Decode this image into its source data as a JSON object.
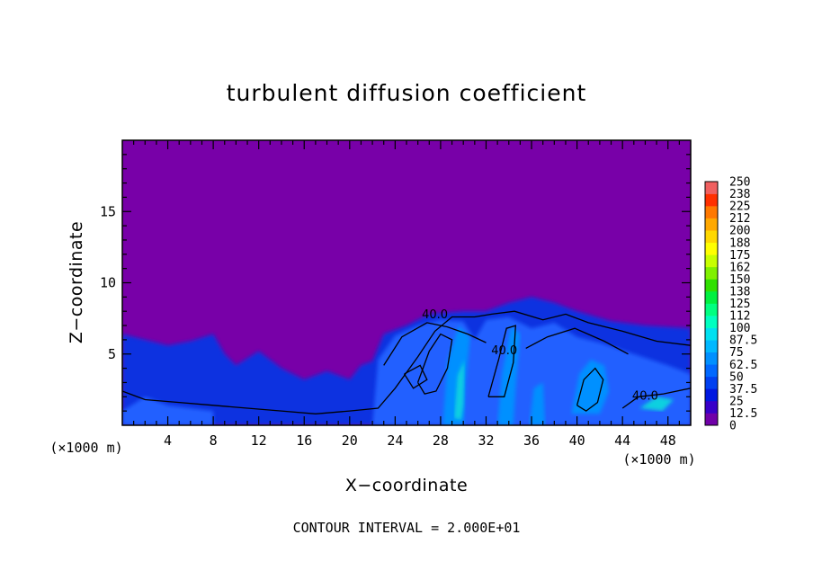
{
  "chart_data": {
    "type": "heatmap",
    "title": "turbulent diffusion coefficient",
    "xlabel": "X−coordinate",
    "ylabel": "Z−coordinate",
    "x_unit_left": "(×1000 m)",
    "x_unit_right": "(×1000 m)",
    "xlim": [
      0,
      50
    ],
    "ylim": [
      0,
      20
    ],
    "x_ticks": [
      4,
      8,
      12,
      16,
      20,
      24,
      28,
      32,
      36,
      40,
      44,
      48
    ],
    "y_ticks": [
      5,
      10,
      15
    ],
    "note": "CONTOUR INTERVAL = 2.000E+01",
    "contour_labels": [
      {
        "text": "40.0",
        "x": 27.5,
        "z": 7.5
      },
      {
        "text": "40.0",
        "x": 33.6,
        "z": 5.0
      },
      {
        "text": "40.0",
        "x": 46.0,
        "z": 1.8
      }
    ],
    "colorbar": {
      "levels": [
        "0",
        "12.5",
        "25",
        "37.5",
        "50",
        "62.5",
        "75",
        "87.5",
        "100",
        "112",
        "125",
        "138",
        "150",
        "162",
        "175",
        "188",
        "200",
        "212",
        "225",
        "238",
        "250"
      ],
      "colors": [
        "#7000a8",
        "#3800c8",
        "#0018e0",
        "#0040f0",
        "#0068ff",
        "#0090ff",
        "#00b8ff",
        "#00e0f0",
        "#00ffc0",
        "#00ff80",
        "#00f040",
        "#30e000",
        "#80f000",
        "#c8ff00",
        "#ffff00",
        "#ffd800",
        "#ffa800",
        "#ff7800",
        "#ff3000",
        "#f06060"
      ]
    },
    "background_color": "#7800a8",
    "fill_colors": [
      "#1030e0",
      "#2060ff",
      "#0090ff",
      "#10d0e0"
    ]
  }
}
